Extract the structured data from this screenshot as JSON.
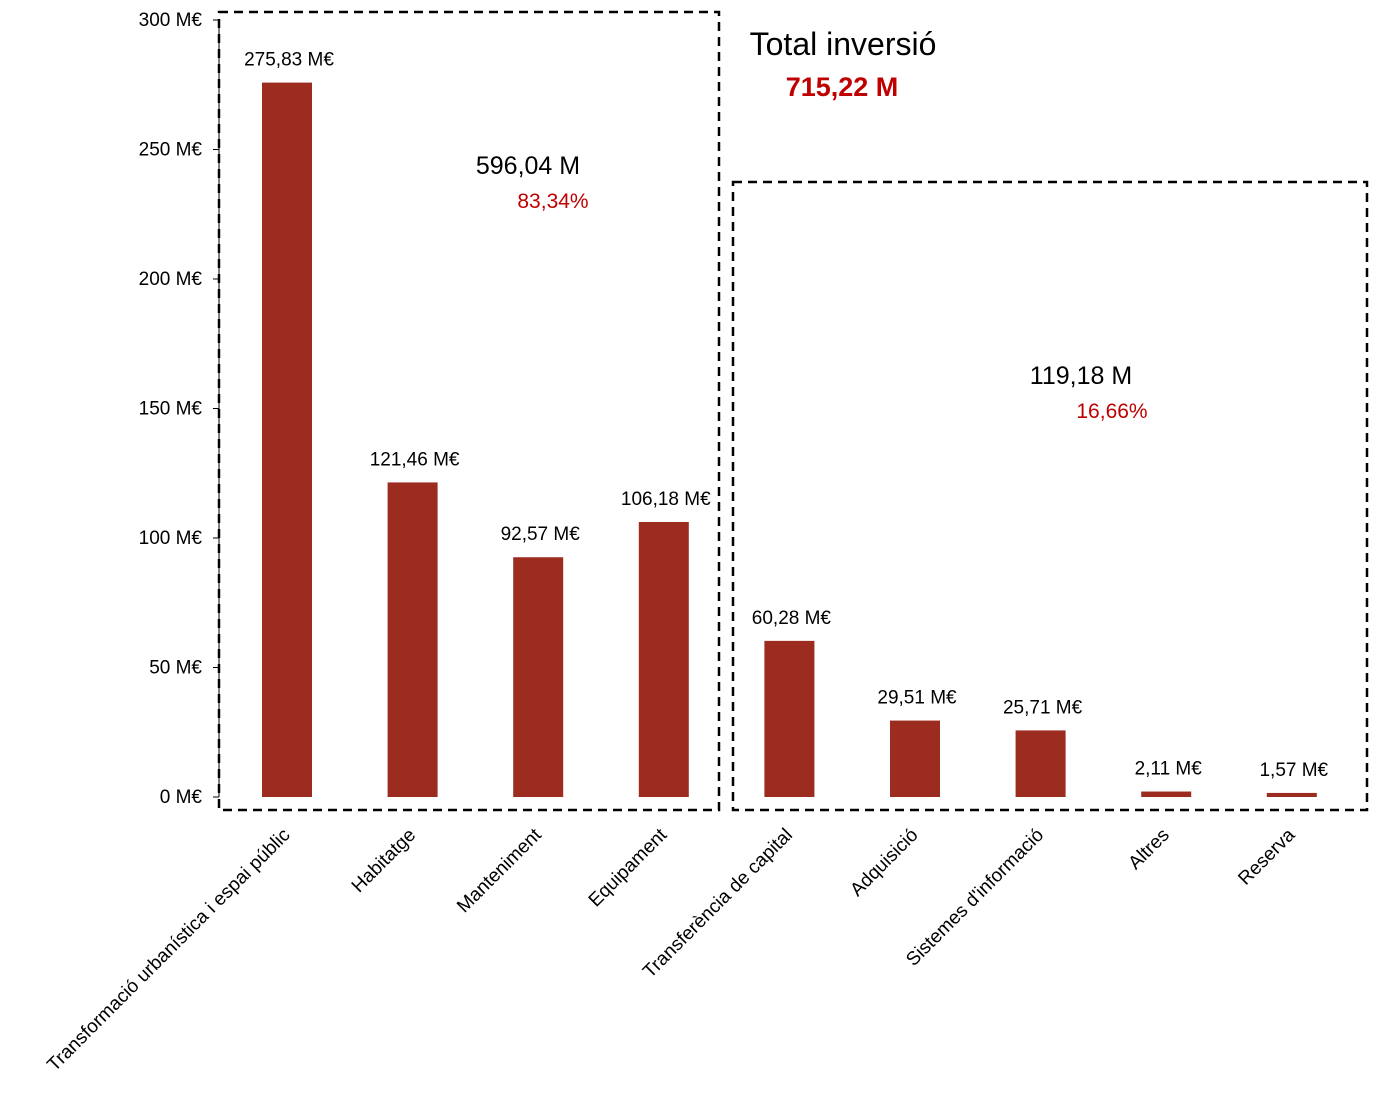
{
  "chart_data": {
    "type": "bar",
    "categories": [
      "Transformació urbanística i espai públic",
      "Habitatge",
      "Manteniment",
      "Equipament",
      "Transferència de capital",
      "Adquisició",
      "Sistemes d'informació",
      "Altres",
      "Reserva"
    ],
    "values": [
      275.83,
      121.46,
      92.57,
      106.18,
      60.28,
      29.51,
      25.71,
      2.11,
      1.57
    ],
    "data_labels": [
      "275,83 M€",
      "121,46 M€",
      "92,57 M€",
      "106,18 M€",
      "60,28 M€",
      "29,51 M€",
      "25,71 M€",
      "2,11 M€",
      "1,57 M€"
    ],
    "ylim": [
      0,
      300
    ],
    "y_ticks": [
      0,
      50,
      100,
      150,
      200,
      250,
      300
    ],
    "y_tick_labels": [
      "0 M€",
      "50 M€",
      "100 M€",
      "150 M€",
      "200 M€",
      "250 M€",
      "300 M€"
    ],
    "grid": false,
    "bar_color": "#9b2c1f",
    "groups": [
      {
        "categories": [
          0,
          1,
          2,
          3
        ],
        "value_label": "596,04 M",
        "percent_label": "83,34%"
      },
      {
        "categories": [
          4,
          5,
          6,
          7,
          8
        ],
        "value_label": "119,18 M",
        "percent_label": "16,66%"
      }
    ],
    "total": {
      "title": "Total inversió",
      "value_label": "715,22 M"
    },
    "accent_color": "#c00000"
  }
}
